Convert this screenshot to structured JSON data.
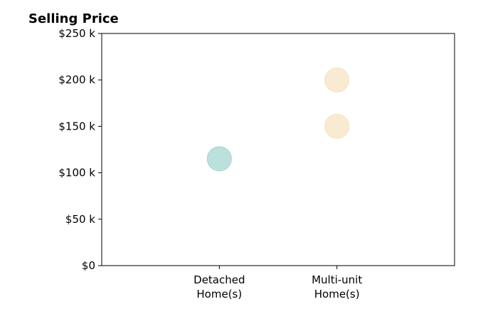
{
  "chart_data": {
    "type": "scatter",
    "title": "Selling Price",
    "xlabel": "",
    "ylabel": "",
    "categories": [
      "Detached\nHome(s)",
      "Multi-unit\nHome(s)"
    ],
    "ylim": [
      0,
      250000
    ],
    "yticks": [
      {
        "value": 0,
        "label": "$0"
      },
      {
        "value": 50000,
        "label": "$50 k"
      },
      {
        "value": 100000,
        "label": "$100 k"
      },
      {
        "value": 150000,
        "label": "$150 k"
      },
      {
        "value": 200000,
        "label": "$200 k"
      },
      {
        "value": 250000,
        "label": "$250 k"
      }
    ],
    "points": [
      {
        "category": "Detached\nHome(s)",
        "y": 115000,
        "color": "#9fd4cf"
      },
      {
        "category": "Multi-unit\nHome(s)",
        "y": 150000,
        "color": "#f7e3bd"
      },
      {
        "category": "Multi-unit\nHome(s)",
        "y": 200000,
        "color": "#f7e3bd"
      }
    ],
    "grid": false,
    "legend": "none"
  }
}
